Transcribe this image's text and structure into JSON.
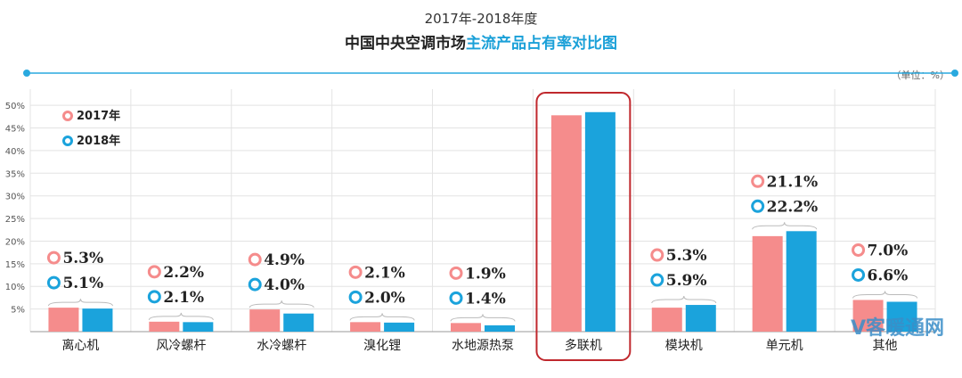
{
  "title": "2017年-2018年度",
  "subtitle_part1": "中国中央空调市场",
  "subtitle_part2": "主流产品占有率对比图",
  "unit_label": "（单位：%）",
  "watermark": "V客暖通网",
  "watermark_url": "www.vkhvacr.com",
  "colors": {
    "s2017": "#f58c8c",
    "s2018": "#1ba3dc",
    "axis": "#29a9df",
    "highlight": "#c0282d"
  },
  "chart_data": {
    "type": "bar",
    "categories": [
      "离心机",
      "风冷螺杆",
      "水冷螺杆",
      "溴化锂",
      "水地源热泵",
      "多联机",
      "模块机",
      "单元机",
      "其他"
    ],
    "series": [
      {
        "name": "2017年",
        "values": [
          5.3,
          2.2,
          4.9,
          2.1,
          1.9,
          47.8,
          5.3,
          21.1,
          7.0
        ],
        "labels": [
          "5.3%",
          "2.2%",
          "4.9%",
          "2.1%",
          "1.9%",
          "47.8%",
          "5.3%",
          "21.1%",
          "7.0%"
        ]
      },
      {
        "name": "2018年",
        "values": [
          5.1,
          2.1,
          4.0,
          2.0,
          1.4,
          48.5,
          5.9,
          22.2,
          6.6
        ],
        "labels": [
          "5.1%",
          "2.1%",
          "4.0%",
          "2.0%",
          "1.4%",
          "48.5%",
          "5.9%",
          "22.2%",
          "6.6%"
        ]
      }
    ],
    "yticks": [
      "5%",
      "10%",
      "15%",
      "20%",
      "25%",
      "30%",
      "35%",
      "40%",
      "45%",
      "50%"
    ],
    "ylim": [
      0,
      52
    ],
    "legend_position": "top-left",
    "highlight_category": "多联机"
  }
}
